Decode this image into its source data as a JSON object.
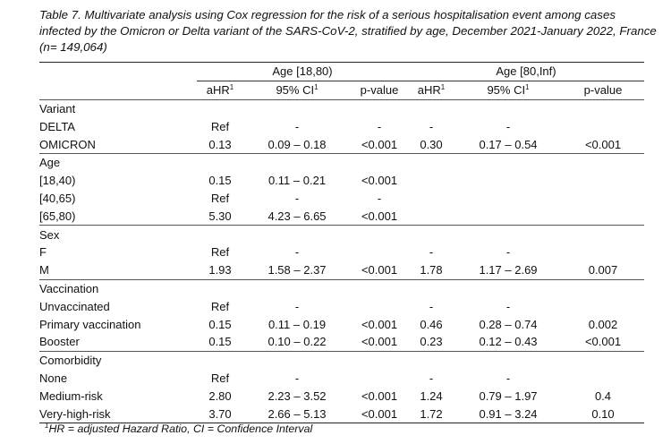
{
  "caption": "Table 7. Multivariate analysis using Cox regression for the risk of a serious hospitalisation event among cases infected by the Omicron or Delta variant of the SARS-CoV-2, stratified by age, December 2021-January 2022, France (n= 149,064)",
  "groups": [
    "Age [18,80)",
    "Age [80,Inf)"
  ],
  "headers": {
    "ahr": "aHR",
    "ci": "95% CI",
    "p": "p-value",
    "sup": "1"
  },
  "sections": [
    {
      "label": "Variant",
      "rows": [
        {
          "label": "DELTA",
          "a_ahr": "Ref",
          "a_ci": "-",
          "a_p": "-",
          "b_ahr": "-",
          "b_ci": "-",
          "b_p": ""
        },
        {
          "label": "OMICRON",
          "a_ahr": "0.13",
          "a_ci": "0.09 – 0.18",
          "a_p": "<0.001",
          "b_ahr": "0.30",
          "b_ci": "0.17 – 0.54",
          "b_p": "<0.001"
        }
      ]
    },
    {
      "label": "Age",
      "rows": [
        {
          "label": "[18,40)",
          "a_ahr": "0.15",
          "a_ci": "0.11 – 0.21",
          "a_p": "<0.001",
          "b_ahr": "",
          "b_ci": "",
          "b_p": ""
        },
        {
          "label": "[40,65)",
          "a_ahr": "Ref",
          "a_ci": "-",
          "a_p": "-",
          "b_ahr": "",
          "b_ci": "",
          "b_p": ""
        },
        {
          "label": "[65,80)",
          "a_ahr": "5.30",
          "a_ci": "4.23 – 6.65",
          "a_p": "<0.001",
          "b_ahr": "",
          "b_ci": "",
          "b_p": ""
        }
      ]
    },
    {
      "label": "Sex",
      "rows": [
        {
          "label": "F",
          "a_ahr": "Ref",
          "a_ci": "-",
          "a_p": "",
          "b_ahr": "-",
          "b_ci": "-",
          "b_p": ""
        },
        {
          "label": "M",
          "a_ahr": "1.93",
          "a_ci": "1.58 – 2.37",
          "a_p": "<0.001",
          "b_ahr": "1.78",
          "b_ci": "1.17 – 2.69",
          "b_p": "0.007"
        }
      ]
    },
    {
      "label": "Vaccination",
      "rows": [
        {
          "label": "Unvaccinated",
          "a_ahr": "Ref",
          "a_ci": "-",
          "a_p": "",
          "b_ahr": "-",
          "b_ci": "-",
          "b_p": ""
        },
        {
          "label": "Primary vaccination",
          "a_ahr": "0.15",
          "a_ci": "0.11 – 0.19",
          "a_p": "<0.001",
          "b_ahr": "0.46",
          "b_ci": "0.28 – 0.74",
          "b_p": "0.002"
        },
        {
          "label": "Booster",
          "a_ahr": "0.15",
          "a_ci": "0.10 – 0.22",
          "a_p": "<0.001",
          "b_ahr": "0.23",
          "b_ci": "0.12 – 0.43",
          "b_p": "<0.001"
        }
      ]
    },
    {
      "label": "Comorbidity",
      "rows": [
        {
          "label": "None",
          "a_ahr": "Ref",
          "a_ci": "-",
          "a_p": "",
          "b_ahr": "-",
          "b_ci": "-",
          "b_p": ""
        },
        {
          "label": "Medium-risk",
          "a_ahr": "2.80",
          "a_ci": "2.23 – 3.52",
          "a_p": "<0.001",
          "b_ahr": "1.24",
          "b_ci": "0.79 – 1.97",
          "b_p": "0.4"
        },
        {
          "label": "Very-high-risk",
          "a_ahr": "3.70",
          "a_ci": "2.66 – 5.13",
          "a_p": "<0.001",
          "b_ahr": "1.72",
          "b_ci": "0.91 – 3.24",
          "b_p": "0.10"
        }
      ]
    }
  ],
  "footnote": {
    "sup": "1",
    "text": "HR = adjusted Hazard Ratio, CI = Confidence Interval"
  }
}
